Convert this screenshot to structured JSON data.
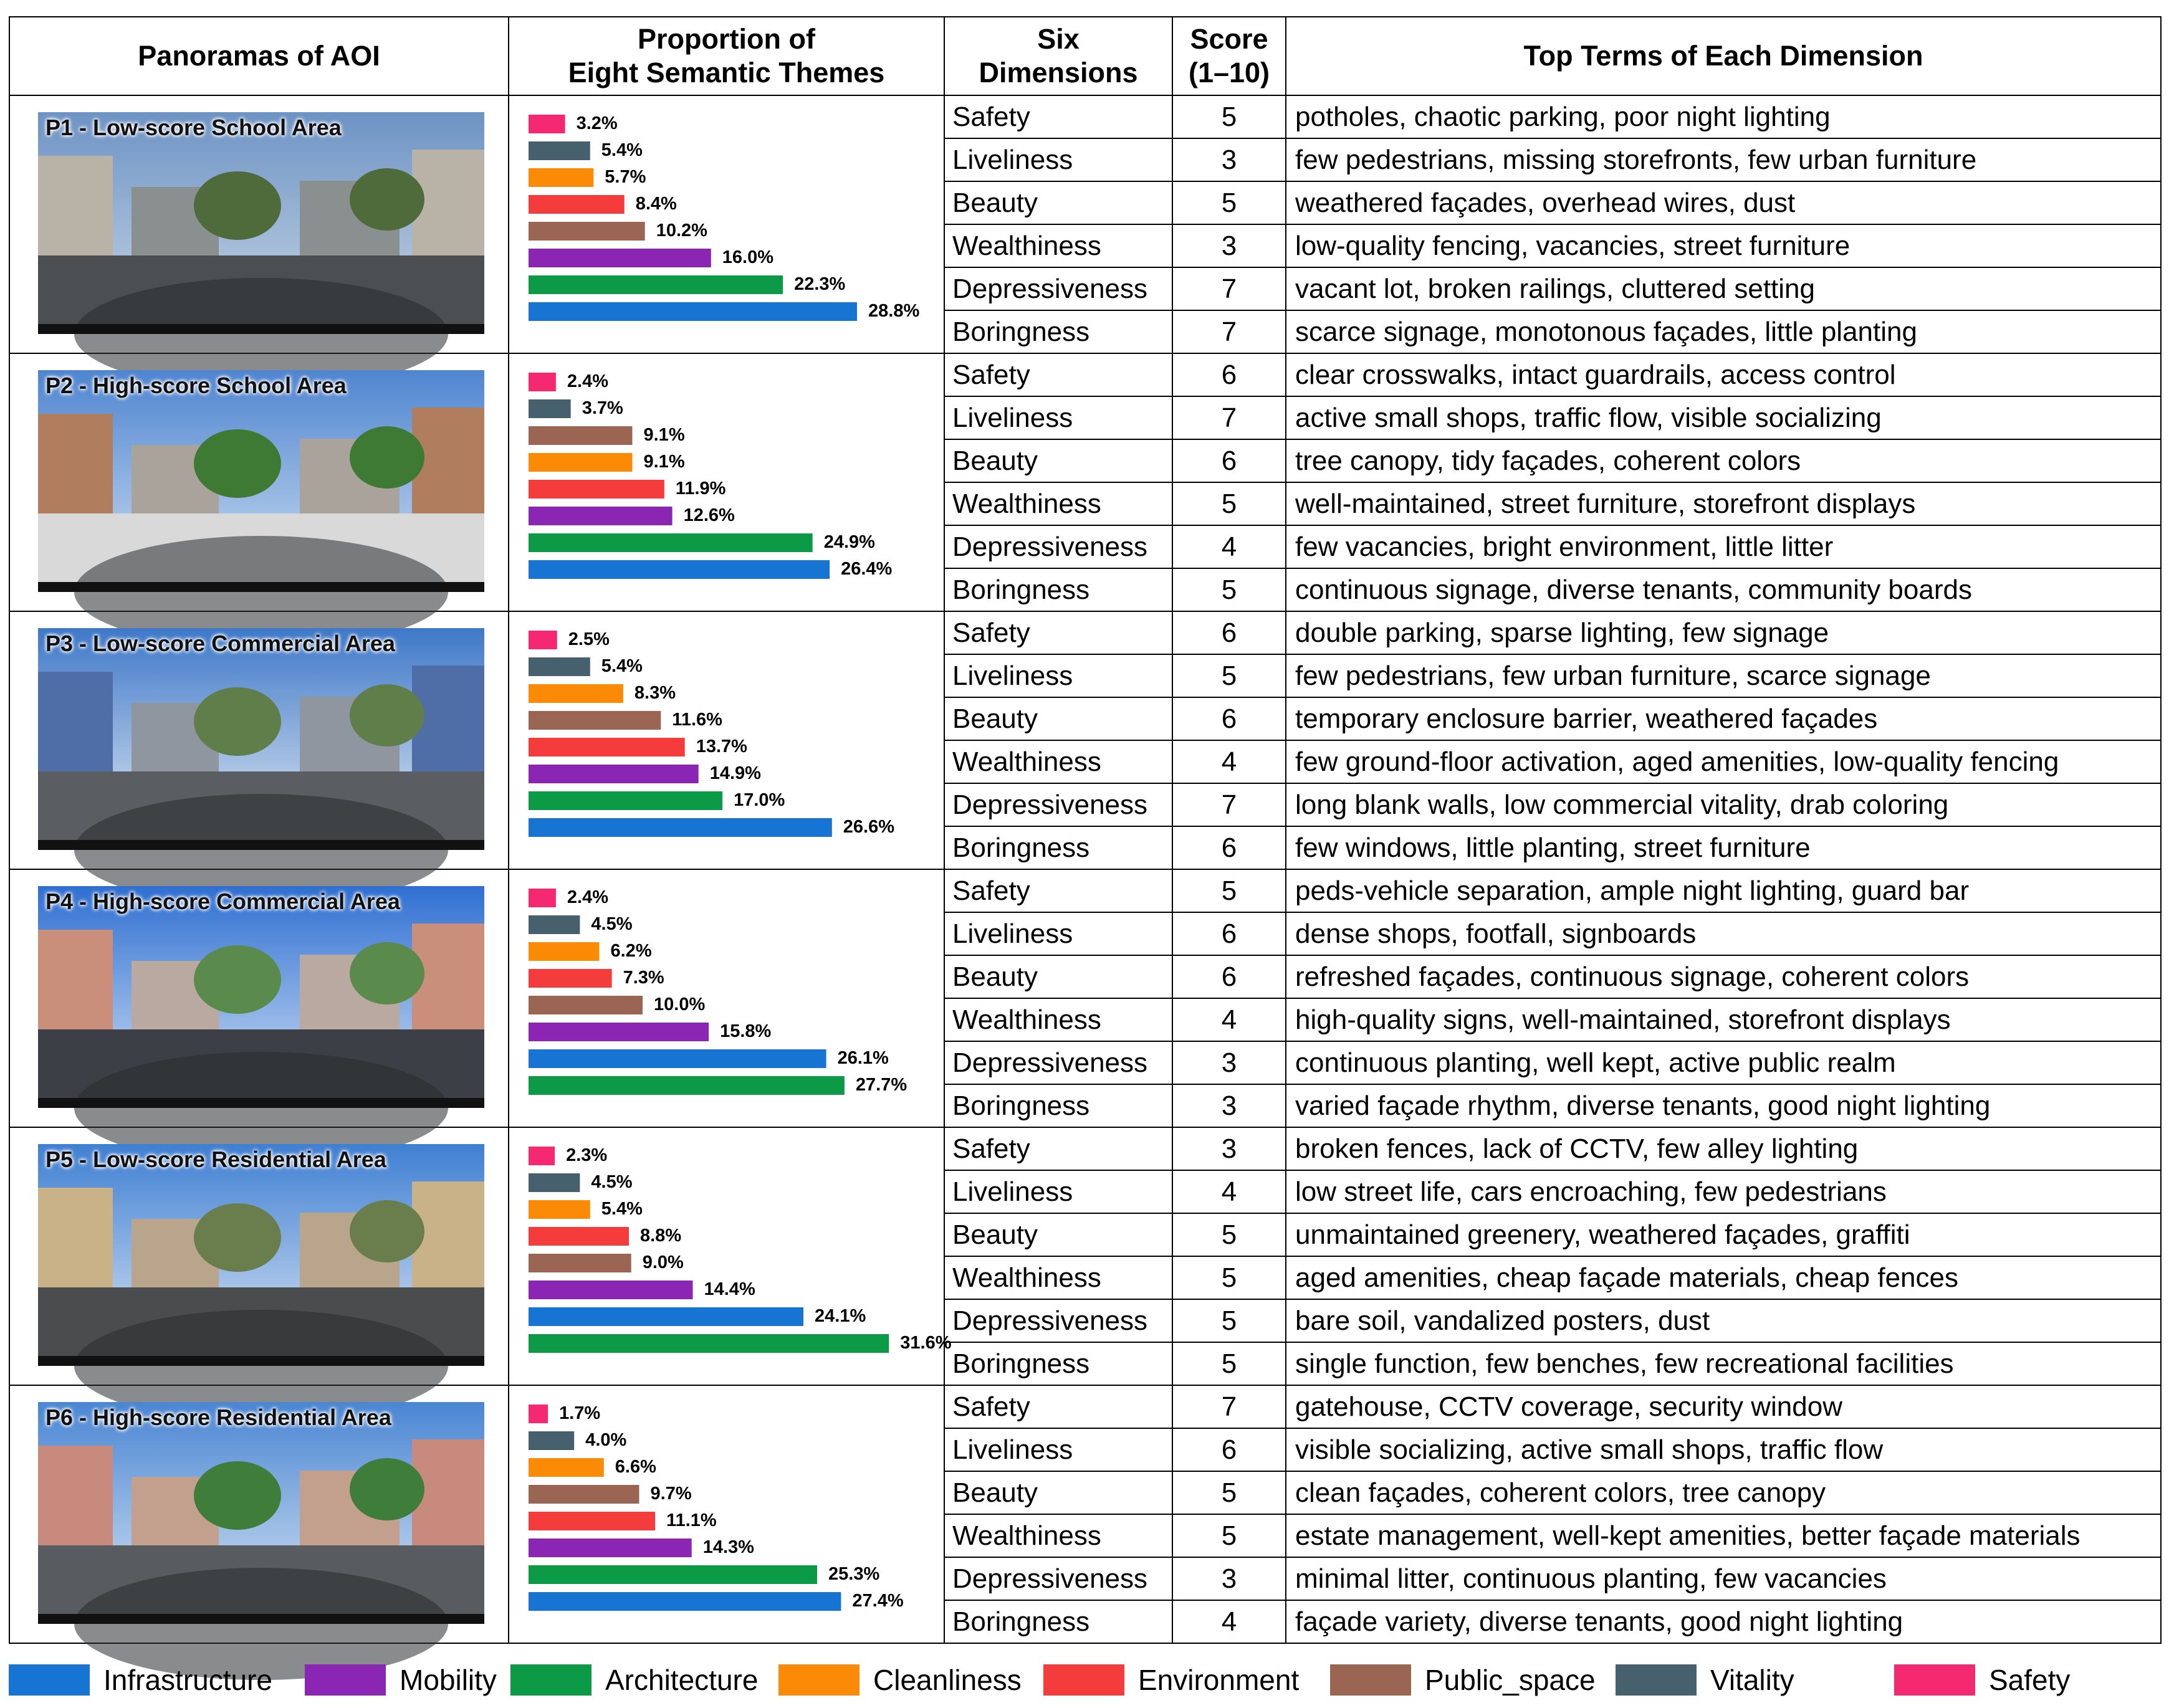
{
  "headers": {
    "panoramas": "Panoramas of AOI",
    "proportion_line1": "Proportion of",
    "proportion_line2": "Eight Semantic Themes",
    "dimensions_line1": "Six",
    "dimensions_line2": "Dimensions",
    "score_line1": "Score",
    "score_line2": "(1–10)",
    "terms": "Top Terms of Each Dimension"
  },
  "theme_colors": {
    "Infrastructure": "#1874d2",
    "Mobility": "#8b25b3",
    "Architecture": "#0c9a46",
    "Cleanliness": "#fb8a07",
    "Environment": "#f53c3c",
    "Public_space": "#9a6553",
    "Vitality": "#47606d",
    "Safety": "#f5296f"
  },
  "legend": [
    "Infrastructure",
    "Mobility",
    "Architecture",
    "Cleanliness",
    "Environment",
    "Public_space",
    "Vitality",
    "Safety"
  ],
  "rows": [
    {
      "label": "P1 - Low-score School Area",
      "chart_data": {
        "type": "bar",
        "bars": [
          {
            "theme": "Safety",
            "value": 3.2,
            "label": "3.2%"
          },
          {
            "theme": "Vitality",
            "value": 5.4,
            "label": "5.4%"
          },
          {
            "theme": "Cleanliness",
            "value": 5.7,
            "label": "5.7%"
          },
          {
            "theme": "Environment",
            "value": 8.4,
            "label": "8.4%"
          },
          {
            "theme": "Public_space",
            "value": 10.2,
            "label": "10.2%"
          },
          {
            "theme": "Mobility",
            "value": 16.0,
            "label": "16.0%"
          },
          {
            "theme": "Architecture",
            "value": 22.3,
            "label": "22.3%"
          },
          {
            "theme": "Infrastructure",
            "value": 28.8,
            "label": "28.8%"
          }
        ]
      },
      "dims": [
        {
          "name": "Safety",
          "score": "5",
          "terms": "potholes, chaotic parking, poor night lighting"
        },
        {
          "name": "Liveliness",
          "score": "3",
          "terms": "few pedestrians, missing storefronts, few urban furniture"
        },
        {
          "name": "Beauty",
          "score": "5",
          "terms": "weathered façades, overhead wires, dust"
        },
        {
          "name": "Wealthiness",
          "score": "3",
          "terms": "low-quality fencing, vacancies, street furniture"
        },
        {
          "name": "Depressiveness",
          "score": "7",
          "terms": "vacant lot, broken railings, cluttered setting"
        },
        {
          "name": "Boringness",
          "score": "7",
          "terms": "scarce signage, monotonous façades, little planting"
        }
      ]
    },
    {
      "label": "P2 - High-score School Area",
      "chart_data": {
        "type": "bar",
        "bars": [
          {
            "theme": "Safety",
            "value": 2.4,
            "label": "2.4%"
          },
          {
            "theme": "Vitality",
            "value": 3.7,
            "label": "3.7%"
          },
          {
            "theme": "Public_space",
            "value": 9.1,
            "label": "9.1%"
          },
          {
            "theme": "Cleanliness",
            "value": 9.1,
            "label": "9.1%"
          },
          {
            "theme": "Environment",
            "value": 11.9,
            "label": "11.9%"
          },
          {
            "theme": "Mobility",
            "value": 12.6,
            "label": "12.6%"
          },
          {
            "theme": "Architecture",
            "value": 24.9,
            "label": "24.9%"
          },
          {
            "theme": "Infrastructure",
            "value": 26.4,
            "label": "26.4%"
          }
        ]
      },
      "dims": [
        {
          "name": "Safety",
          "score": "6",
          "terms": "clear crosswalks, intact guardrails, access control"
        },
        {
          "name": "Liveliness",
          "score": "7",
          "terms": "active small shops, traffic flow, visible socializing"
        },
        {
          "name": "Beauty",
          "score": "6",
          "terms": "tree canopy, tidy façades, coherent colors"
        },
        {
          "name": "Wealthiness",
          "score": "5",
          "terms": "well-maintained, street furniture, storefront displays"
        },
        {
          "name": "Depressiveness",
          "score": "4",
          "terms": "few vacancies, bright environment, little litter"
        },
        {
          "name": "Boringness",
          "score": "5",
          "terms": "continuous signage, diverse tenants, community boards"
        }
      ]
    },
    {
      "label": "P3 - Low-score Commercial Area",
      "chart_data": {
        "type": "bar",
        "bars": [
          {
            "theme": "Safety",
            "value": 2.5,
            "label": "2.5%"
          },
          {
            "theme": "Vitality",
            "value": 5.4,
            "label": "5.4%"
          },
          {
            "theme": "Cleanliness",
            "value": 8.3,
            "label": "8.3%"
          },
          {
            "theme": "Public_space",
            "value": 11.6,
            "label": "11.6%"
          },
          {
            "theme": "Environment",
            "value": 13.7,
            "label": "13.7%"
          },
          {
            "theme": "Mobility",
            "value": 14.9,
            "label": "14.9%"
          },
          {
            "theme": "Architecture",
            "value": 17.0,
            "label": "17.0%"
          },
          {
            "theme": "Infrastructure",
            "value": 26.6,
            "label": "26.6%"
          }
        ]
      },
      "dims": [
        {
          "name": "Safety",
          "score": "6",
          "terms": "double parking, sparse lighting, few signage"
        },
        {
          "name": "Liveliness",
          "score": "5",
          "terms": "few pedestrians, few urban furniture, scarce signage"
        },
        {
          "name": "Beauty",
          "score": "6",
          "terms": "temporary enclosure barrier, weathered façades"
        },
        {
          "name": "Wealthiness",
          "score": "4",
          "terms": "few ground-floor activation, aged amenities, low-quality fencing"
        },
        {
          "name": "Depressiveness",
          "score": "7",
          "terms": "long blank walls, low commercial vitality, drab coloring"
        },
        {
          "name": "Boringness",
          "score": "6",
          "terms": "few windows, little planting, street furniture"
        }
      ]
    },
    {
      "label": "P4 - High-score Commercial Area",
      "chart_data": {
        "type": "bar",
        "bars": [
          {
            "theme": "Safety",
            "value": 2.4,
            "label": "2.4%"
          },
          {
            "theme": "Vitality",
            "value": 4.5,
            "label": "4.5%"
          },
          {
            "theme": "Cleanliness",
            "value": 6.2,
            "label": "6.2%"
          },
          {
            "theme": "Environment",
            "value": 7.3,
            "label": "7.3%"
          },
          {
            "theme": "Public_space",
            "value": 10.0,
            "label": "10.0%"
          },
          {
            "theme": "Mobility",
            "value": 15.8,
            "label": "15.8%"
          },
          {
            "theme": "Infrastructure",
            "value": 26.1,
            "label": "26.1%"
          },
          {
            "theme": "Architecture",
            "value": 27.7,
            "label": "27.7%"
          }
        ]
      },
      "dims": [
        {
          "name": "Safety",
          "score": "5",
          "terms": "peds-vehicle separation, ample night lighting, guard bar"
        },
        {
          "name": "Liveliness",
          "score": "6",
          "terms": "dense shops, footfall, signboards"
        },
        {
          "name": "Beauty",
          "score": "6",
          "terms": "refreshed façades, continuous signage, coherent colors"
        },
        {
          "name": "Wealthiness",
          "score": "4",
          "terms": "high-quality signs, well-maintained, storefront displays"
        },
        {
          "name": "Depressiveness",
          "score": "3",
          "terms": "continuous planting, well kept, active public realm"
        },
        {
          "name": "Boringness",
          "score": "3",
          "terms": "varied façade rhythm, diverse tenants, good night lighting"
        }
      ]
    },
    {
      "label": "P5 - Low-score Residential Area",
      "chart_data": {
        "type": "bar",
        "bars": [
          {
            "theme": "Safety",
            "value": 2.3,
            "label": "2.3%"
          },
          {
            "theme": "Vitality",
            "value": 4.5,
            "label": "4.5%"
          },
          {
            "theme": "Cleanliness",
            "value": 5.4,
            "label": "5.4%"
          },
          {
            "theme": "Environment",
            "value": 8.8,
            "label": "8.8%"
          },
          {
            "theme": "Public_space",
            "value": 9.0,
            "label": "9.0%"
          },
          {
            "theme": "Mobility",
            "value": 14.4,
            "label": "14.4%"
          },
          {
            "theme": "Infrastructure",
            "value": 24.1,
            "label": "24.1%"
          },
          {
            "theme": "Architecture",
            "value": 31.6,
            "label": "31.6%"
          }
        ]
      },
      "dims": [
        {
          "name": "Safety",
          "score": "3",
          "terms": "broken fences, lack of CCTV, few alley lighting"
        },
        {
          "name": "Liveliness",
          "score": "4",
          "terms": "low street life, cars encroaching, few pedestrians"
        },
        {
          "name": "Beauty",
          "score": "5",
          "terms": "unmaintained greenery, weathered façades, graffiti"
        },
        {
          "name": "Wealthiness",
          "score": "5",
          "terms": "aged amenities, cheap façade materials, cheap fences"
        },
        {
          "name": "Depressiveness",
          "score": "5",
          "terms": "bare soil, vandalized posters, dust"
        },
        {
          "name": "Boringness",
          "score": "5",
          "terms": "single function, few benches, few recreational facilities"
        }
      ]
    },
    {
      "label": "P6 - High-score Residential Area",
      "chart_data": {
        "type": "bar",
        "bars": [
          {
            "theme": "Safety",
            "value": 1.7,
            "label": "1.7%"
          },
          {
            "theme": "Vitality",
            "value": 4.0,
            "label": "4.0%"
          },
          {
            "theme": "Cleanliness",
            "value": 6.6,
            "label": "6.6%"
          },
          {
            "theme": "Public_space",
            "value": 9.7,
            "label": "9.7%"
          },
          {
            "theme": "Environment",
            "value": 11.1,
            "label": "11.1%"
          },
          {
            "theme": "Mobility",
            "value": 14.3,
            "label": "14.3%"
          },
          {
            "theme": "Architecture",
            "value": 25.3,
            "label": "25.3%"
          },
          {
            "theme": "Infrastructure",
            "value": 27.4,
            "label": "27.4%"
          }
        ]
      },
      "dims": [
        {
          "name": "Safety",
          "score": "7",
          "terms": "gatehouse, CCTV coverage, security window"
        },
        {
          "name": "Liveliness",
          "score": "6",
          "terms": "visible socializing, active small shops, traffic flow"
        },
        {
          "name": "Beauty",
          "score": "5",
          "terms": "clean façades, coherent colors, tree canopy"
        },
        {
          "name": "Wealthiness",
          "score": "5",
          "terms": "estate management, well-kept amenities, better façade materials"
        },
        {
          "name": "Depressiveness",
          "score": "3",
          "terms": "minimal litter, continuous planting, few vacancies"
        },
        {
          "name": "Boringness",
          "score": "4",
          "terms": "façade variety, diverse tenants, good night lighting"
        }
      ]
    }
  ]
}
